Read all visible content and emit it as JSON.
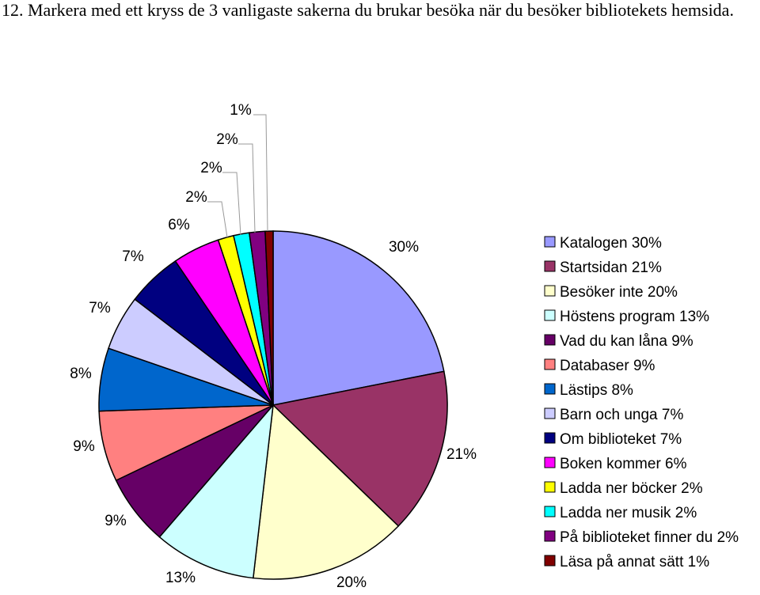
{
  "question": "12. Markera med ett kryss de 3 vanligaste sakerna du brukar besöka när du besöker bibliotekets hemsida.",
  "chart_data": {
    "type": "pie",
    "legend_position": "right",
    "slices": [
      {
        "legend": "Katalogen 30%",
        "label": "30%",
        "value": 30,
        "color": "#9999ff"
      },
      {
        "legend": "Startsidan 21%",
        "label": "21%",
        "value": 21,
        "color": "#993366"
      },
      {
        "legend": "Besöker inte 20%",
        "label": "20%",
        "value": 20,
        "color": "#ffffcc"
      },
      {
        "legend": "Höstens program 13%",
        "label": "13%",
        "value": 13,
        "color": "#ccffff"
      },
      {
        "legend": "Vad du kan låna 9%",
        "label": "9%",
        "value": 9,
        "color": "#660066"
      },
      {
        "legend": "Databaser 9%",
        "label": "9%",
        "value": 9,
        "color": "#ff8080"
      },
      {
        "legend": "Lästips 8%",
        "label": "8%",
        "value": 8,
        "color": "#0066cc"
      },
      {
        "legend": "Barn och unga 7%",
        "label": "7%",
        "value": 7,
        "color": "#ccccff"
      },
      {
        "legend": "Om biblioteket 7%",
        "label": "7%",
        "value": 7,
        "color": "#000080"
      },
      {
        "legend": "Boken kommer 6%",
        "label": "6%",
        "value": 6,
        "color": "#ff00ff"
      },
      {
        "legend": "Ladda ner böcker 2%",
        "label": "2%",
        "value": 2,
        "color": "#ffff00"
      },
      {
        "legend": "Ladda ner musik 2%",
        "label": "2%",
        "value": 2,
        "color": "#00ffff"
      },
      {
        "legend": "På biblioteket finner du 2%",
        "label": "2%",
        "value": 2,
        "color": "#800080"
      },
      {
        "legend": "Läsa på annat sätt 1%",
        "label": "1%",
        "value": 1,
        "color": "#800000"
      }
    ]
  }
}
